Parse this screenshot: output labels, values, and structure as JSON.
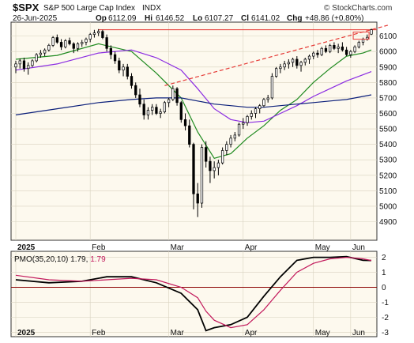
{
  "header": {
    "symbol": "$SPX",
    "name": "S&P 500 Large Cap Index",
    "exchange": "INDX",
    "date": "26-Jun-2025",
    "op_label": "Op",
    "op_value": "6112.09",
    "hi_label": "Hi",
    "hi_value": "6146.52",
    "lo_label": "Lo",
    "lo_value": "6107.27",
    "cl_label": "Cl",
    "cl_value": "6141.02",
    "chg_label": "Chg",
    "chg_value": "+48.86 (+0.80%)",
    "brand": "© StockCharts.com"
  },
  "colors": {
    "panel_bg": "#fdf9ee",
    "up_candle": "#ffffff",
    "down_candle": "#000000",
    "ma_short": "#1f8a1f",
    "ma_mid": "#8a2be2",
    "ma_long": "#0b1f7a",
    "trendline": "#e53935",
    "pmo": "#000000",
    "pmo_signal": "#c2185b",
    "zero_line": "#8b0000"
  },
  "chart_data": [
    {
      "type": "candlestick",
      "title": "S&P 500 Large Cap Index",
      "x_labels": [
        "2025",
        "Feb",
        "Mar",
        "Apr",
        "May",
        "Jun"
      ],
      "y_ticks": [
        4900,
        5000,
        5100,
        5200,
        5300,
        5400,
        5500,
        5600,
        5700,
        5800,
        5900,
        6000,
        6100
      ],
      "ylim": [
        4780,
        6190
      ],
      "grid": true,
      "bars": [
        [
          5900,
          5940,
          5860,
          5920
        ],
        [
          5920,
          5955,
          5890,
          5940
        ],
        [
          5940,
          5960,
          5870,
          5890
        ],
        [
          5890,
          5930,
          5850,
          5910
        ],
        [
          5910,
          5950,
          5900,
          5940
        ],
        [
          5940,
          5990,
          5930,
          5980
        ],
        [
          5980,
          6010,
          5960,
          5990
        ],
        [
          5990,
          6020,
          5970,
          6010
        ],
        [
          6010,
          6050,
          6000,
          6040
        ],
        [
          6040,
          6100,
          6030,
          6090
        ],
        [
          6090,
          6110,
          6050,
          6060
        ],
        [
          6060,
          6080,
          6010,
          6030
        ],
        [
          6030,
          6080,
          6020,
          6070
        ],
        [
          6070,
          6090,
          6040,
          6050
        ],
        [
          6050,
          6060,
          5990,
          6020
        ],
        [
          6020,
          6060,
          6000,
          6050
        ],
        [
          6050,
          6075,
          6030,
          6060
        ],
        [
          6060,
          6090,
          6040,
          6080
        ],
        [
          6080,
          6120,
          6060,
          6110
        ],
        [
          6110,
          6140,
          6090,
          6120
        ],
        [
          6120,
          6145,
          6100,
          6130
        ],
        [
          6130,
          6140,
          6080,
          6090
        ],
        [
          6090,
          6110,
          6000,
          6020
        ],
        [
          6020,
          6040,
          5950,
          5980
        ],
        [
          5980,
          6000,
          5920,
          5940
        ],
        [
          5940,
          5960,
          5860,
          5880
        ],
        [
          5880,
          5920,
          5840,
          5900
        ],
        [
          5900,
          5920,
          5820,
          5840
        ],
        [
          5840,
          5860,
          5760,
          5780
        ],
        [
          5780,
          5800,
          5700,
          5720
        ],
        [
          5720,
          5760,
          5640,
          5660
        ],
        [
          5660,
          5690,
          5560,
          5590
        ],
        [
          5590,
          5640,
          5560,
          5620
        ],
        [
          5620,
          5660,
          5590,
          5640
        ],
        [
          5640,
          5660,
          5590,
          5600
        ],
        [
          5600,
          5630,
          5570,
          5610
        ],
        [
          5610,
          5680,
          5600,
          5670
        ],
        [
          5670,
          5700,
          5640,
          5690
        ],
        [
          5690,
          5780,
          5680,
          5760
        ],
        [
          5760,
          5770,
          5650,
          5670
        ],
        [
          5670,
          5680,
          5540,
          5560
        ],
        [
          5560,
          5600,
          5490,
          5520
        ],
        [
          5520,
          5560,
          5380,
          5400
        ],
        [
          5400,
          5410,
          4980,
          5080
        ],
        [
          5080,
          5150,
          4930,
          5020
        ],
        [
          5020,
          5400,
          4990,
          5380
        ],
        [
          5380,
          5420,
          5250,
          5290
        ],
        [
          5290,
          5320,
          5150,
          5230
        ],
        [
          5230,
          5290,
          5180,
          5250
        ],
        [
          5250,
          5300,
          5200,
          5280
        ],
        [
          5280,
          5380,
          5270,
          5360
        ],
        [
          5360,
          5420,
          5330,
          5400
        ],
        [
          5400,
          5460,
          5380,
          5440
        ],
        [
          5440,
          5480,
          5420,
          5460
        ],
        [
          5460,
          5540,
          5450,
          5530
        ],
        [
          5530,
          5570,
          5500,
          5540
        ],
        [
          5540,
          5590,
          5520,
          5580
        ],
        [
          5580,
          5620,
          5560,
          5600
        ],
        [
          5600,
          5640,
          5570,
          5630
        ],
        [
          5630,
          5660,
          5600,
          5650
        ],
        [
          5650,
          5700,
          5640,
          5690
        ],
        [
          5690,
          5720,
          5670,
          5700
        ],
        [
          5700,
          5860,
          5690,
          5840
        ],
        [
          5840,
          5900,
          5830,
          5890
        ],
        [
          5890,
          5920,
          5860,
          5900
        ],
        [
          5900,
          5940,
          5880,
          5920
        ],
        [
          5920,
          5950,
          5890,
          5930
        ],
        [
          5930,
          5960,
          5900,
          5950
        ],
        [
          5950,
          5970,
          5890,
          5910
        ],
        [
          5910,
          5940,
          5870,
          5930
        ],
        [
          5930,
          5960,
          5910,
          5950
        ],
        [
          5950,
          5980,
          5920,
          5970
        ],
        [
          5970,
          6000,
          5950,
          5990
        ],
        [
          5990,
          6010,
          5960,
          5980
        ],
        [
          5980,
          6030,
          5970,
          6020
        ],
        [
          6020,
          6040,
          5990,
          6000
        ],
        [
          6000,
          6050,
          5990,
          6040
        ],
        [
          6040,
          6060,
          6010,
          6020
        ],
        [
          6020,
          6050,
          5990,
          6030
        ],
        [
          6030,
          6060,
          6000,
          6010
        ],
        [
          6010,
          6030,
          5970,
          5980
        ],
        [
          5980,
          6010,
          5960,
          6000
        ],
        [
          6000,
          6040,
          5990,
          6030
        ],
        [
          6030,
          6070,
          6020,
          6060
        ],
        [
          6060,
          6090,
          6040,
          6080
        ],
        [
          6080,
          6110,
          6070,
          6092
        ],
        [
          6112,
          6147,
          6107,
          6141
        ]
      ],
      "series": [
        {
          "key": "ma_short",
          "x": [
            0,
            10,
            20,
            28,
            34,
            40,
            44,
            48,
            52,
            56,
            60,
            64,
            68,
            72,
            76,
            80,
            84,
            86
          ],
          "y": [
            5950,
            5975,
            6050,
            6000,
            5860,
            5700,
            5480,
            5310,
            5340,
            5440,
            5520,
            5620,
            5690,
            5800,
            5890,
            5970,
            5990,
            6010
          ]
        },
        {
          "key": "ma_mid",
          "x": [
            0,
            10,
            20,
            28,
            34,
            40,
            44,
            48,
            52,
            56,
            60,
            64,
            68,
            72,
            76,
            80,
            84,
            86
          ],
          "y": [
            5880,
            5920,
            5990,
            6010,
            5960,
            5880,
            5760,
            5630,
            5560,
            5540,
            5550,
            5600,
            5650,
            5710,
            5760,
            5810,
            5850,
            5870
          ]
        },
        {
          "key": "ma_long",
          "x": [
            0,
            10,
            20,
            28,
            34,
            40,
            44,
            48,
            52,
            56,
            60,
            64,
            68,
            72,
            76,
            80,
            84,
            86
          ],
          "y": [
            5590,
            5630,
            5670,
            5690,
            5700,
            5700,
            5680,
            5660,
            5650,
            5640,
            5640,
            5650,
            5660,
            5670,
            5680,
            5690,
            5710,
            5720
          ]
        },
        {
          "key": "trendline",
          "x": [
            36,
            90
          ],
          "y": [
            5780,
            6170
          ]
        }
      ],
      "hline": 6141
    },
    {
      "type": "line",
      "title": "PMO(35,20,10)",
      "legend": "PMO(35,20,10) 1.79, 1.79",
      "value": "1.79",
      "signal_value": "1.79",
      "x_labels": [
        "2025",
        "Feb",
        "Mar",
        "Apr",
        "May",
        "Jun"
      ],
      "y_ticks": [
        -3,
        -2,
        -1,
        0,
        1,
        2
      ],
      "ylim": [
        -3.3,
        2.4
      ],
      "series": [
        {
          "key": "pmo",
          "x": [
            0,
            8,
            16,
            22,
            28,
            34,
            40,
            44,
            46,
            48,
            52,
            56,
            60,
            64,
            68,
            72,
            76,
            80,
            84,
            86
          ],
          "y": [
            0.5,
            0.3,
            0.4,
            0.7,
            0.7,
            0.3,
            -0.4,
            -1.5,
            -2.9,
            -2.7,
            -2.5,
            -2.0,
            -0.6,
            0.7,
            1.8,
            2.0,
            2.0,
            2.05,
            1.8,
            1.79
          ]
        },
        {
          "key": "pmo_signal",
          "x": [
            0,
            8,
            16,
            22,
            28,
            34,
            40,
            44,
            46,
            48,
            52,
            56,
            60,
            64,
            68,
            72,
            76,
            80,
            84,
            86
          ],
          "y": [
            0.8,
            0.5,
            0.4,
            0.5,
            0.6,
            0.5,
            0.0,
            -0.7,
            -1.6,
            -2.2,
            -2.7,
            -2.5,
            -1.5,
            -0.2,
            1.0,
            1.6,
            1.9,
            2.0,
            1.9,
            1.79
          ]
        }
      ],
      "zero_line": 0
    }
  ]
}
